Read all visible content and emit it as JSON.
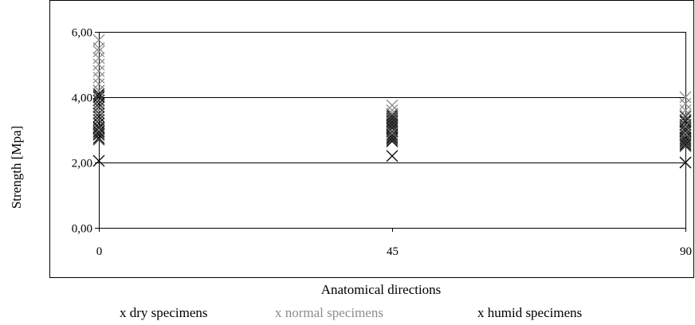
{
  "chart_data": {
    "type": "scatter",
    "title": "",
    "xlabel": "Anatomical directions",
    "ylabel": "Strength [Mpa]",
    "ylim": [
      0,
      6
    ],
    "y_ticks": [
      "0,00",
      "2,00",
      "4,00",
      "6,00"
    ],
    "x_ticks": [
      "0",
      "45",
      "90"
    ],
    "grid": "horizontal",
    "marker": "x",
    "legend_position": "bottom",
    "series": [
      {
        "name": "dry specimens",
        "legend_label": "x dry specimens",
        "color": "#000000",
        "points": [
          [
            0,
            2.05
          ],
          [
            0,
            2.75
          ],
          [
            0,
            2.85
          ],
          [
            0,
            2.95
          ],
          [
            0,
            3.05
          ],
          [
            0,
            3.2
          ],
          [
            0,
            3.3
          ],
          [
            0,
            3.4
          ],
          [
            0,
            3.5
          ],
          [
            0,
            3.6
          ],
          [
            0,
            3.7
          ],
          [
            0,
            3.8
          ],
          [
            0,
            3.9
          ],
          [
            0,
            4.0
          ],
          [
            0,
            4.1
          ],
          [
            0,
            4.2
          ],
          [
            45,
            2.2
          ],
          [
            45,
            2.65
          ],
          [
            45,
            2.75
          ],
          [
            45,
            2.85
          ],
          [
            45,
            2.95
          ],
          [
            45,
            3.05
          ],
          [
            45,
            3.15
          ],
          [
            45,
            3.25
          ],
          [
            45,
            3.35
          ],
          [
            45,
            3.45
          ],
          [
            90,
            2.0
          ],
          [
            90,
            2.55
          ],
          [
            90,
            2.65
          ],
          [
            90,
            2.75
          ],
          [
            90,
            2.85
          ],
          [
            90,
            2.95
          ],
          [
            90,
            3.05
          ],
          [
            90,
            3.15
          ],
          [
            90,
            3.25
          ]
        ]
      },
      {
        "name": "normal specimens",
        "legend_label": "x normal specimens",
        "color": "#8c8c8c",
        "points": [
          [
            0,
            3.0
          ],
          [
            0,
            3.3
          ],
          [
            0,
            3.6
          ],
          [
            0,
            3.9
          ],
          [
            0,
            4.2
          ],
          [
            0,
            4.4
          ],
          [
            0,
            4.6
          ],
          [
            0,
            4.8
          ],
          [
            0,
            5.0
          ],
          [
            0,
            5.2
          ],
          [
            0,
            5.4
          ],
          [
            0,
            5.5
          ],
          [
            0,
            5.75
          ],
          [
            45,
            2.9
          ],
          [
            45,
            3.1
          ],
          [
            45,
            3.3
          ],
          [
            45,
            3.4
          ],
          [
            45,
            3.5
          ],
          [
            45,
            3.6
          ],
          [
            45,
            3.75
          ],
          [
            90,
            2.7
          ],
          [
            90,
            2.9
          ],
          [
            90,
            3.1
          ],
          [
            90,
            3.3
          ],
          [
            90,
            3.45
          ],
          [
            90,
            3.6
          ],
          [
            90,
            3.8
          ],
          [
            90,
            4.0
          ]
        ]
      },
      {
        "name": "humid specimens",
        "legend_label": "x humid specimens",
        "color": "#3c3c3c",
        "points": [
          [
            0,
            2.7
          ],
          [
            0,
            2.9
          ],
          [
            0,
            3.1
          ],
          [
            0,
            3.3
          ],
          [
            0,
            3.5
          ],
          [
            0,
            3.7
          ],
          [
            0,
            3.9
          ],
          [
            0,
            4.05
          ],
          [
            45,
            2.7
          ],
          [
            45,
            2.8
          ],
          [
            45,
            2.95
          ],
          [
            45,
            3.1
          ],
          [
            45,
            3.2
          ],
          [
            45,
            3.3
          ],
          [
            45,
            3.4
          ],
          [
            90,
            2.5
          ],
          [
            90,
            2.6
          ],
          [
            90,
            2.7
          ],
          [
            90,
            2.85
          ],
          [
            90,
            3.0
          ],
          [
            90,
            3.15
          ],
          [
            90,
            3.3
          ],
          [
            90,
            3.4
          ]
        ]
      }
    ]
  }
}
